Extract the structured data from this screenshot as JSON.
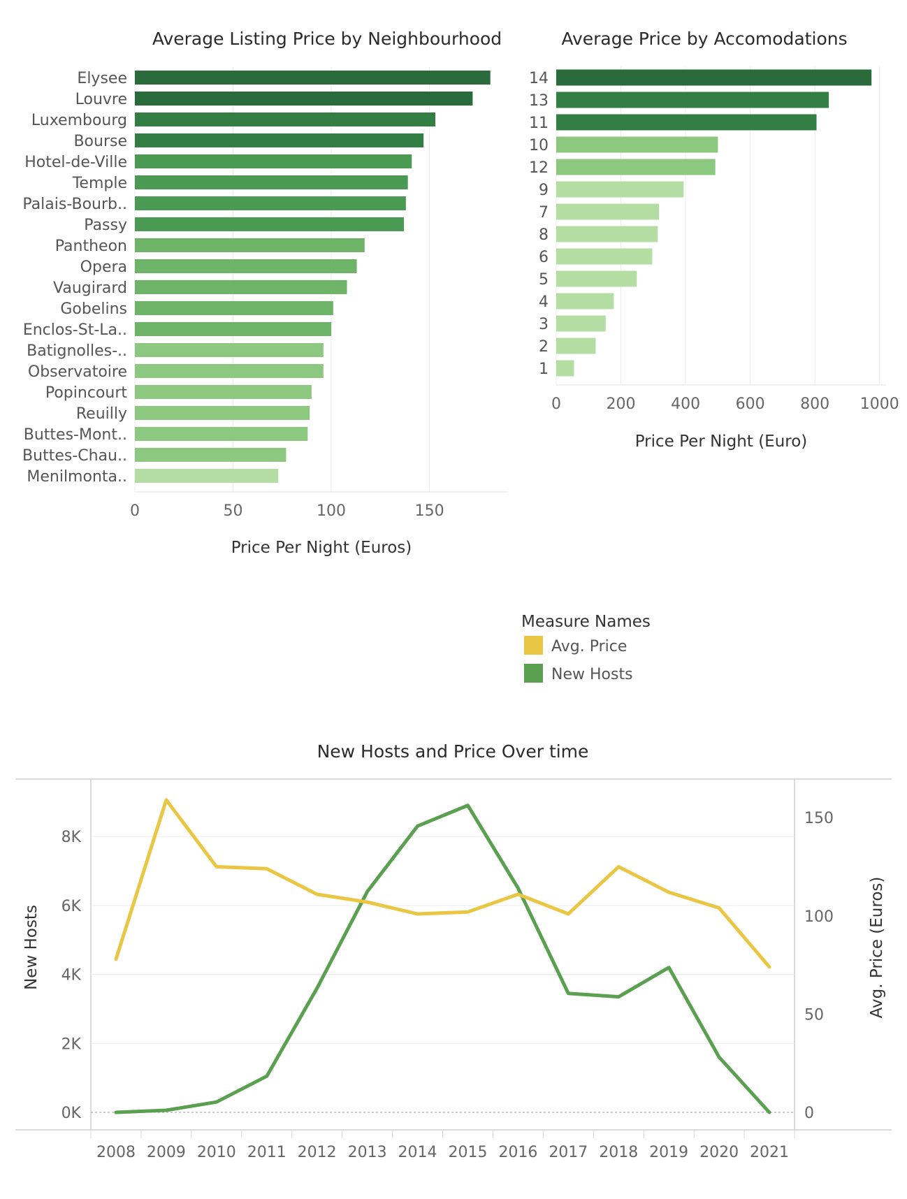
{
  "colors": {
    "bar_darkest": "#2a6b3c",
    "bar_dark": "#327e43",
    "bar_mid": "#4a9a53",
    "bar_light": "#6db469",
    "bar_lighter": "#8cc880",
    "bar_lightest": "#b4dda4",
    "avg_price": "#e9c643",
    "new_hosts": "#5aa050",
    "grid": "#ececec"
  },
  "chart_data": [
    {
      "type": "bar",
      "orientation": "horizontal",
      "title": "Average Listing Price by Neighbourhood",
      "xlabel": "Price Per Night (Euros)",
      "ylabel": "",
      "xlim": [
        0,
        190
      ],
      "xticks": [
        0,
        50,
        100,
        150
      ],
      "categories": [
        "Elysee",
        "Louvre",
        "Luxembourg",
        "Bourse",
        "Hotel-de-Ville",
        "Temple",
        "Palais-Bourb..",
        "Passy",
        "Pantheon",
        "Opera",
        "Vaugirard",
        "Gobelins",
        "Enclos-St-La..",
        "Batignolles-..",
        "Observatoire",
        "Popincourt",
        "Reuilly",
        "Buttes-Mont..",
        "Buttes-Chau..",
        "Menilmonta.."
      ],
      "values": [
        181,
        172,
        153,
        147,
        141,
        139,
        138,
        137,
        117,
        113,
        108,
        101,
        100,
        96,
        96,
        90,
        89,
        88,
        77,
        73
      ]
    },
    {
      "type": "bar",
      "orientation": "horizontal",
      "title": "Average Price by Accomodations",
      "xlabel": "Price Per Night (Euro)",
      "ylabel": "",
      "xlim": [
        0,
        1020
      ],
      "xticks": [
        0,
        200,
        400,
        600,
        800,
        1000
      ],
      "categories": [
        "14",
        "13",
        "11",
        "10",
        "12",
        "9",
        "7",
        "8",
        "6",
        "5",
        "4",
        "3",
        "2",
        "1"
      ],
      "values": [
        975,
        843,
        805,
        500,
        492,
        394,
        318,
        314,
        297,
        249,
        178,
        153,
        122,
        55
      ]
    },
    {
      "type": "line",
      "title": "New Hosts and Price Over time",
      "x": [
        "2008",
        "2009",
        "2010",
        "2011",
        "2012",
        "2013",
        "2014",
        "2015",
        "2016",
        "2017",
        "2018",
        "2019",
        "2020",
        "2021"
      ],
      "legend": {
        "title": "Measure Names",
        "placement": "above-chart"
      },
      "series": [
        {
          "name": "New Hosts",
          "axis": "left",
          "values": [
            0,
            60,
            300,
            1050,
            3600,
            6400,
            8300,
            8900,
            6500,
            3450,
            3350,
            4200,
            1600,
            0
          ]
        },
        {
          "name": "Avg. Price",
          "axis": "right",
          "values": [
            78,
            159,
            125,
            124,
            111,
            107,
            101,
            102,
            111,
            101,
            125,
            112,
            104,
            74
          ]
        }
      ],
      "y_left": {
        "label": "New Hosts",
        "ylim": [
          0,
          9400
        ],
        "ticks": [
          0,
          2000,
          4000,
          6000,
          8000
        ],
        "tick_labels": [
          "0K",
          "2K",
          "4K",
          "6K",
          "8K"
        ]
      },
      "y_right": {
        "label": "Avg. Price (Euros)",
        "ylim": [
          0,
          165
        ],
        "ticks": [
          0,
          50,
          100,
          150
        ],
        "tick_labels": [
          "0",
          "50",
          "100",
          "150"
        ]
      }
    }
  ]
}
